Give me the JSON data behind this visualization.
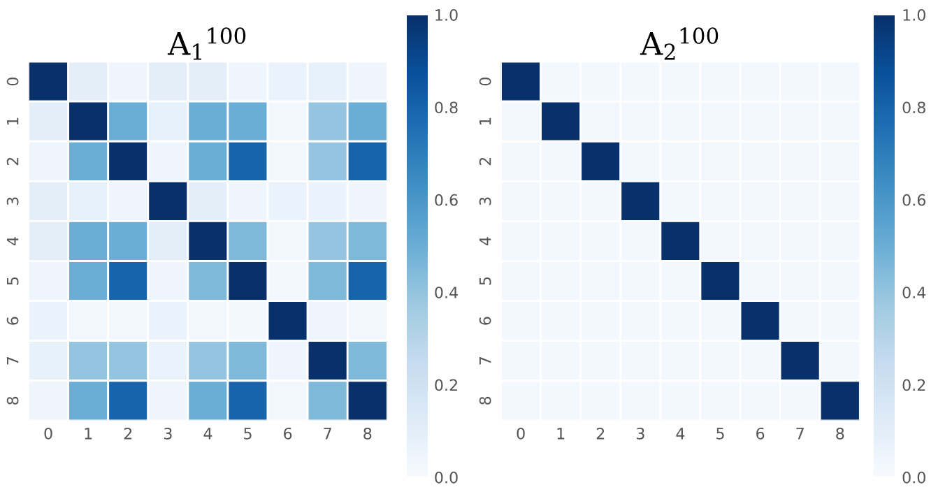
{
  "chart_data": [
    {
      "type": "heatmap",
      "title": "A$_{1}$$^{100}$",
      "categories": [
        "0",
        "1",
        "2",
        "3",
        "4",
        "5",
        "6",
        "7",
        "8"
      ],
      "y_categories": [
        "0",
        "1",
        "2",
        "3",
        "4",
        "5",
        "6",
        "7",
        "8"
      ],
      "cells": [
        [
          1,
          0.1,
          0.05,
          0.1,
          0.1,
          0.05,
          0.07,
          0.08,
          0.05
        ],
        [
          0.1,
          1,
          0.5,
          0.08,
          0.5,
          0.5,
          0.03,
          0.4,
          0.5
        ],
        [
          0.05,
          0.5,
          1,
          0.05,
          0.5,
          0.8,
          0.03,
          0.4,
          0.8
        ],
        [
          0.1,
          0.08,
          0.05,
          1,
          0.1,
          0.05,
          0.07,
          0.07,
          0.05
        ],
        [
          0.1,
          0.5,
          0.5,
          0.1,
          1,
          0.45,
          0.03,
          0.4,
          0.45
        ],
        [
          0.05,
          0.5,
          0.8,
          0.05,
          0.45,
          1,
          0.02,
          0.45,
          0.8
        ],
        [
          0.07,
          0.03,
          0.03,
          0.07,
          0.03,
          0.02,
          1,
          0.05,
          0.03
        ],
        [
          0.08,
          0.4,
          0.4,
          0.07,
          0.4,
          0.45,
          0.05,
          1,
          0.45
        ],
        [
          0.05,
          0.5,
          0.8,
          0.05,
          0.5,
          0.8,
          0.03,
          0.45,
          1
        ]
      ],
      "clim": [
        0,
        1
      ],
      "cticks": [
        {
          "value": 0,
          "label": "0.0"
        },
        {
          "value": 0.2,
          "label": "0.2"
        },
        {
          "value": 0.4,
          "label": "0.4"
        },
        {
          "value": 0.6,
          "label": "0.6"
        },
        {
          "value": 0.8,
          "label": "0.8"
        },
        {
          "value": 1,
          "label": "1.0"
        }
      ]
    },
    {
      "type": "heatmap",
      "title": "A$_{2}$$^{100}$",
      "categories": [
        "0",
        "1",
        "2",
        "3",
        "4",
        "5",
        "6",
        "7",
        "8"
      ],
      "y_categories": [
        "0",
        "1",
        "2",
        "3",
        "4",
        "5",
        "6",
        "7",
        "8"
      ],
      "cells": [
        [
          1,
          0.02,
          0.02,
          0.02,
          0.02,
          0.02,
          0.02,
          0.02,
          0.02
        ],
        [
          0.02,
          1,
          0.03,
          0.02,
          0.02,
          0.02,
          0.02,
          0.02,
          0.02
        ],
        [
          0.02,
          0.02,
          1,
          0.02,
          0.02,
          0.03,
          0.02,
          0.02,
          0.03
        ],
        [
          0.02,
          0.02,
          0.02,
          1,
          0.02,
          0.02,
          0.02,
          0.02,
          0.02
        ],
        [
          0.02,
          0.02,
          0.02,
          0.02,
          1,
          0.02,
          0.02,
          0.02,
          0.02
        ],
        [
          0.02,
          0.02,
          0.03,
          0.02,
          0.02,
          1,
          0.02,
          0.02,
          0.02
        ],
        [
          0.02,
          0.02,
          0.02,
          0.02,
          0.02,
          0.02,
          1,
          0.02,
          0.02
        ],
        [
          0.02,
          0.02,
          0.02,
          0.02,
          0.02,
          0.02,
          0.02,
          1,
          0.02
        ],
        [
          0.02,
          0.02,
          0.02,
          0.02,
          0.02,
          0.02,
          0.02,
          0.02,
          1
        ]
      ],
      "clim": [
        0,
        1
      ],
      "cticks": [
        {
          "value": 0,
          "label": "0.0"
        },
        {
          "value": 0.2,
          "label": "0.2"
        },
        {
          "value": 0.4,
          "label": "0.4"
        },
        {
          "value": 0.6,
          "label": "0.6"
        },
        {
          "value": 0.8,
          "label": "0.8"
        },
        {
          "value": 1,
          "label": "1.0"
        }
      ]
    }
  ]
}
